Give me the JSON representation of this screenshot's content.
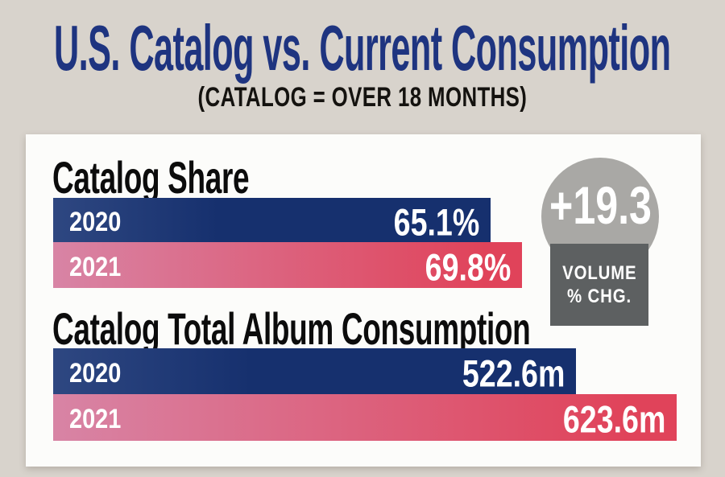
{
  "header": {
    "title": "U.S. Catalog vs. Current Consumption",
    "subtitle": "(CATALOG = OVER 18 MONTHS)"
  },
  "badge": {
    "value": "+19.3",
    "label_line1": "VOLUME",
    "label_line2": "% CHG."
  },
  "colors": {
    "page_background": "#d8d3cc",
    "card_background": "#fcfcfa",
    "title_navy": "#1e3480",
    "bar_navy": "#16306e",
    "bar_red_left": "#d884a5",
    "bar_red_right": "#e0435a",
    "badge_circle_gray": "#a9a8a5",
    "badge_box_gray": "#5d6061"
  },
  "chart_data": [
    {
      "type": "bar",
      "orientation": "horizontal",
      "title": "Catalog Share",
      "categories": [
        "2020",
        "2021"
      ],
      "values": [
        65.1,
        69.8
      ],
      "value_labels": [
        "65.1%",
        "69.8%"
      ],
      "unit": "%",
      "series_colors": [
        "#16306e",
        "#e0435a"
      ],
      "grid": false,
      "legend": false
    },
    {
      "type": "bar",
      "orientation": "horizontal",
      "title": "Catalog Total Album Consumption",
      "categories": [
        "2020",
        "2021"
      ],
      "values": [
        522.6,
        623.6
      ],
      "value_labels": [
        "522.6m",
        "623.6m"
      ],
      "unit": "million albums",
      "series_colors": [
        "#16306e",
        "#e0435a"
      ],
      "grid": false,
      "legend": false
    }
  ]
}
